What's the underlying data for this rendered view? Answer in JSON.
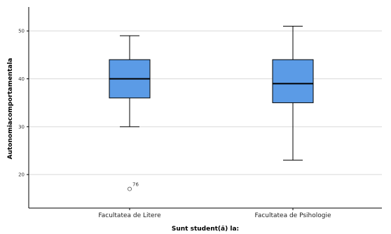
{
  "chart_data": {
    "type": "boxplot",
    "xlabel": "Sunt student(ă) la:",
    "ylabel": "Autonomiacomportamentala",
    "ylim": [
      13,
      55
    ],
    "yticks": [
      20,
      30,
      40,
      50
    ],
    "grid": "horizontal",
    "box_color": "#5b9be6",
    "categories": [
      "Facultatea de Litere",
      "Facultatea de Psihologie"
    ],
    "boxes": [
      {
        "category": "Facultatea de Litere",
        "whisker_low": 30,
        "q1": 36,
        "median": 40,
        "q3": 44,
        "whisker_high": 49,
        "outliers": [
          {
            "value": 17,
            "label": "76"
          }
        ]
      },
      {
        "category": "Facultatea de Psihologie",
        "whisker_low": 23,
        "q1": 35,
        "median": 39,
        "q3": 44,
        "whisker_high": 51,
        "outliers": []
      }
    ]
  }
}
